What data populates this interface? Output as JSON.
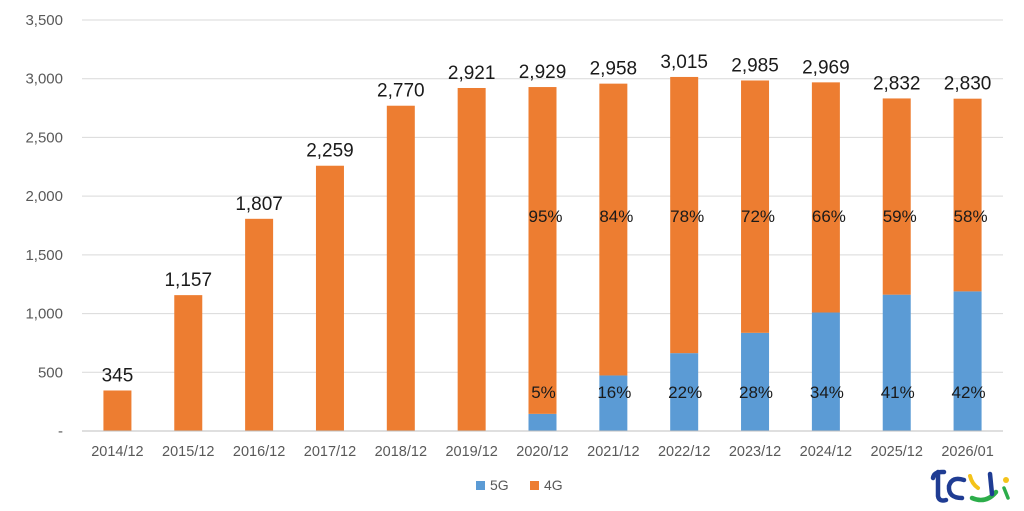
{
  "chart_data": {
    "type": "bar",
    "stacked": true,
    "categories": [
      "2014/12",
      "2015/12",
      "2016/12",
      "2017/12",
      "2018/12",
      "2019/12",
      "2020/12",
      "2021/12",
      "2022/12",
      "2023/12",
      "2024/12",
      "2025/12",
      "2026/01"
    ],
    "totals": [
      345,
      1157,
      1807,
      2259,
      2770,
      2921,
      2929,
      2958,
      3015,
      2985,
      2969,
      2832,
      2830
    ],
    "total_labels": [
      "345",
      "1,157",
      "1,807",
      "2,259",
      "2,770",
      "2,921",
      "2,929",
      "2,958",
      "3,015",
      "2,985",
      "2,969",
      "2,832",
      "2,830"
    ],
    "series": [
      {
        "name": "5G",
        "color": "#5b9bd5",
        "values": [
          0,
          0,
          0,
          0,
          0,
          0,
          146,
          473,
          663,
          836,
          1009,
          1161,
          1189
        ],
        "pct_labels": [
          "",
          "",
          "",
          "",
          "",
          "",
          "5%",
          "16%",
          "22%",
          "28%",
          "34%",
          "41%",
          "42%"
        ]
      },
      {
        "name": "4G",
        "color": "#ed7d31",
        "values": [
          345,
          1157,
          1807,
          2259,
          2770,
          2921,
          2783,
          2485,
          2352,
          2149,
          1960,
          1671,
          1641
        ],
        "pct_labels": [
          "",
          "",
          "",
          "",
          "",
          "",
          "95%",
          "84%",
          "78%",
          "72%",
          "66%",
          "59%",
          "58%"
        ]
      }
    ],
    "ylim": [
      0,
      3500
    ],
    "yticks": [
      0,
      500,
      1000,
      1500,
      2000,
      2500,
      3000,
      3500
    ],
    "ytick_labels": [
      "-",
      "500",
      "1,000",
      "1,500",
      "2,000",
      "2,500",
      "3,000",
      "3,500"
    ],
    "grid": true,
    "legend_position": "bottom",
    "gridline_color": "#d9d9d9"
  },
  "logo": {
    "icon": "tcj-logo"
  }
}
